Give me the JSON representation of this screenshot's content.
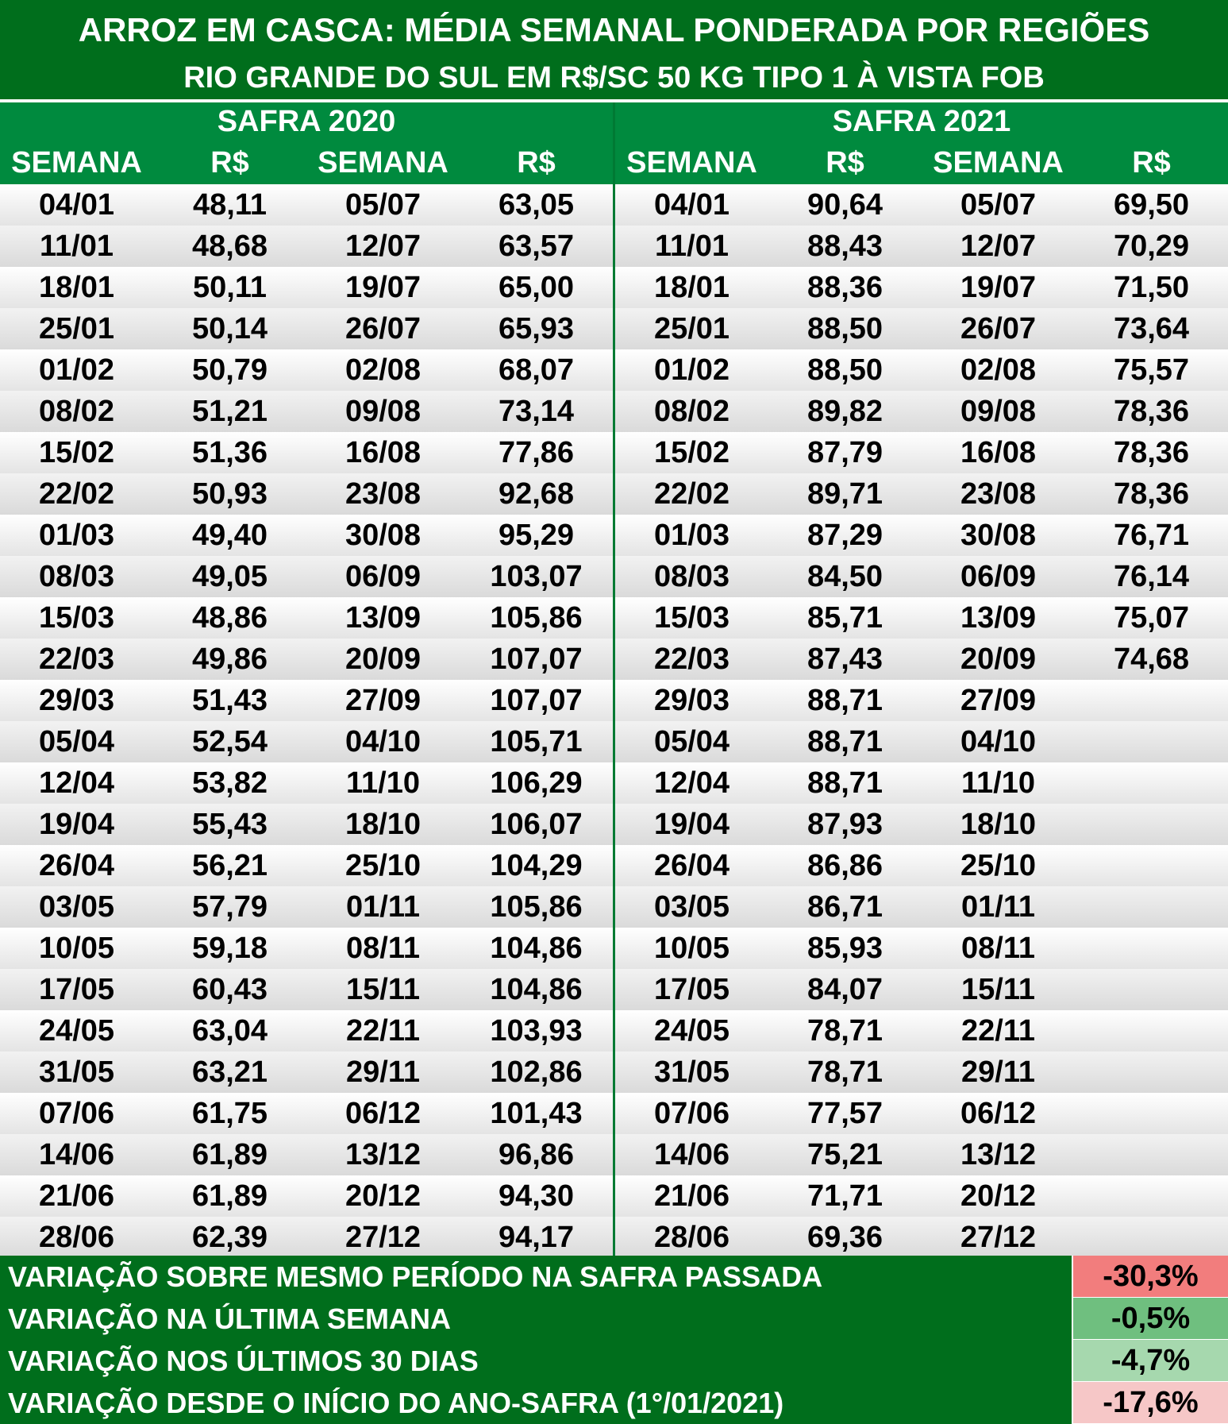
{
  "title": "ARROZ EM CASCA: MÉDIA SEMANAL PONDERADA POR REGIÕES",
  "subtitle": "RIO GRANDE DO SUL EM R$/SC 50 KG TIPO 1 À VISTA FOB",
  "headers": {
    "semana": "SEMANA",
    "rs": "R$"
  },
  "safra_2020": {
    "label": "SAFRA 2020",
    "rows": [
      [
        "04/01",
        "48,11",
        "05/07",
        "63,05"
      ],
      [
        "11/01",
        "48,68",
        "12/07",
        "63,57"
      ],
      [
        "18/01",
        "50,11",
        "19/07",
        "65,00"
      ],
      [
        "25/01",
        "50,14",
        "26/07",
        "65,93"
      ],
      [
        "01/02",
        "50,79",
        "02/08",
        "68,07"
      ],
      [
        "08/02",
        "51,21",
        "09/08",
        "73,14"
      ],
      [
        "15/02",
        "51,36",
        "16/08",
        "77,86"
      ],
      [
        "22/02",
        "50,93",
        "23/08",
        "92,68"
      ],
      [
        "01/03",
        "49,40",
        "30/08",
        "95,29"
      ],
      [
        "08/03",
        "49,05",
        "06/09",
        "103,07"
      ],
      [
        "15/03",
        "48,86",
        "13/09",
        "105,86"
      ],
      [
        "22/03",
        "49,86",
        "20/09",
        "107,07"
      ],
      [
        "29/03",
        "51,43",
        "27/09",
        "107,07"
      ],
      [
        "05/04",
        "52,54",
        "04/10",
        "105,71"
      ],
      [
        "12/04",
        "53,82",
        "11/10",
        "106,29"
      ],
      [
        "19/04",
        "55,43",
        "18/10",
        "106,07"
      ],
      [
        "26/04",
        "56,21",
        "25/10",
        "104,29"
      ],
      [
        "03/05",
        "57,79",
        "01/11",
        "105,86"
      ],
      [
        "10/05",
        "59,18",
        "08/11",
        "104,86"
      ],
      [
        "17/05",
        "60,43",
        "15/11",
        "104,86"
      ],
      [
        "24/05",
        "63,04",
        "22/11",
        "103,93"
      ],
      [
        "31/05",
        "63,21",
        "29/11",
        "102,86"
      ],
      [
        "07/06",
        "61,75",
        "06/12",
        "101,43"
      ],
      [
        "14/06",
        "61,89",
        "13/12",
        "96,86"
      ],
      [
        "21/06",
        "61,89",
        "20/12",
        "94,30"
      ],
      [
        "28/06",
        "62,39",
        "27/12",
        "94,17"
      ]
    ]
  },
  "safra_2021": {
    "label": "SAFRA 2021",
    "rows": [
      [
        "04/01",
        "90,64",
        "05/07",
        "69,50"
      ],
      [
        "11/01",
        "88,43",
        "12/07",
        "70,29"
      ],
      [
        "18/01",
        "88,36",
        "19/07",
        "71,50"
      ],
      [
        "25/01",
        "88,50",
        "26/07",
        "73,64"
      ],
      [
        "01/02",
        "88,50",
        "02/08",
        "75,57"
      ],
      [
        "08/02",
        "89,82",
        "09/08",
        "78,36"
      ],
      [
        "15/02",
        "87,79",
        "16/08",
        "78,36"
      ],
      [
        "22/02",
        "89,71",
        "23/08",
        "78,36"
      ],
      [
        "01/03",
        "87,29",
        "30/08",
        "76,71"
      ],
      [
        "08/03",
        "84,50",
        "06/09",
        "76,14"
      ],
      [
        "15/03",
        "85,71",
        "13/09",
        "75,07"
      ],
      [
        "22/03",
        "87,43",
        "20/09",
        "74,68"
      ],
      [
        "29/03",
        "88,71",
        "27/09",
        ""
      ],
      [
        "05/04",
        "88,71",
        "04/10",
        ""
      ],
      [
        "12/04",
        "88,71",
        "11/10",
        ""
      ],
      [
        "19/04",
        "87,93",
        "18/10",
        ""
      ],
      [
        "26/04",
        "86,86",
        "25/10",
        ""
      ],
      [
        "03/05",
        "86,71",
        "01/11",
        ""
      ],
      [
        "10/05",
        "85,93",
        "08/11",
        ""
      ],
      [
        "17/05",
        "84,07",
        "15/11",
        ""
      ],
      [
        "24/05",
        "78,71",
        "22/11",
        ""
      ],
      [
        "31/05",
        "78,71",
        "29/11",
        ""
      ],
      [
        "07/06",
        "77,57",
        "06/12",
        ""
      ],
      [
        "14/06",
        "75,21",
        "13/12",
        ""
      ],
      [
        "21/06",
        "71,71",
        "20/12",
        ""
      ],
      [
        "28/06",
        "69,36",
        "27/12",
        ""
      ]
    ]
  },
  "variations": [
    {
      "label": "VARIAÇÃO SOBRE MESMO PERÍODO NA SAFRA PASSADA",
      "value": "-30,3%",
      "color": "#f27d7d"
    },
    {
      "label": "VARIAÇÃO NA ÚLTIMA SEMANA",
      "value": "-0,5%",
      "color": "#6fbf7f"
    },
    {
      "label": "VARIAÇÃO NOS ÚLTIMOS 30 DIAS",
      "value": "-4,7%",
      "color": "#a6d8ae"
    },
    {
      "label": "VARIAÇÃO DESDE O INÍCIO DO ANO-SAFRA (1°/01/2021)",
      "value": "-17,6%",
      "color": "#f6c7c7"
    }
  ],
  "colors": {
    "title_bg": "#006e1c",
    "header_bg": "#008a3e",
    "divider": "#007a33"
  }
}
